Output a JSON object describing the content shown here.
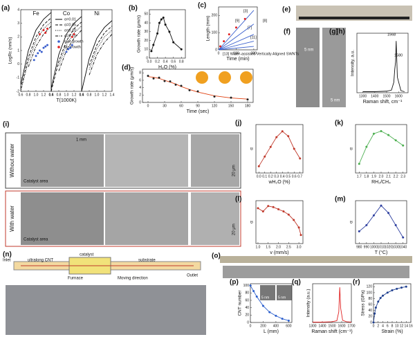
{
  "chart_data": [
    {
      "type": "line",
      "title": "Fe",
      "label": "(a)",
      "ylabel": "LogRc (nm/s)",
      "x": [
        0.6,
        0.8,
        1.0,
        1.2,
        1.4
      ],
      "xlim": [
        0.6,
        1.4
      ],
      "ylim": [
        -2,
        4
      ],
      "xticks": [
        0.6,
        0.8,
        {
          "value": 1,
          "label": "1.0"
        },
        1.2,
        1.4
      ],
      "yticks": [
        -2,
        -1,
        0,
        1,
        2,
        3,
        4
      ],
      "legend": "upper right",
      "series": [
        {
          "name": "α=0.01",
          "color": "#000",
          "style": "solid",
          "values": [
            -1.5,
            1.0,
            2.5,
            3.3,
            3.8
          ]
        },
        {
          "name": "α=0.05",
          "color": "#000",
          "style": "dashed",
          "values": [
            -1.8,
            0.5,
            2.0,
            2.9,
            3.4
          ]
        },
        {
          "name": "α=0.10",
          "color": "#000",
          "style": "dotted",
          "values": [
            -2,
            0.2,
            1.7,
            2.6,
            3.1
          ]
        },
        {
          "name": "α=0.20",
          "color": "#000",
          "style": "dashdot",
          "values": [
            null,
            -0.2,
            1.3,
            2.2,
            2.8
          ]
        },
        {
          "name": "root growth",
          "color": "#3a5fcd",
          "line": false,
          "marker": true,
          "x": [
            0.95,
            1.0,
            1.05,
            1.1,
            1.15,
            1.2,
            1.25,
            1.3
          ],
          "values": [
            0.3,
            0.6,
            0.8,
            1.0,
            0.9,
            1.2,
            1.3,
            1.4
          ]
        },
        {
          "name": "tip growth",
          "color": "#e02020",
          "line": false,
          "marker": true,
          "x": [
            1.1,
            1.2,
            1.25,
            1.3
          ],
          "values": [
            2.2,
            2.5,
            2.3,
            2.6
          ]
        }
      ]
    },
    {
      "type": "line",
      "title": "Co",
      "xlabel": "T(1000K)",
      "x": [
        0.6,
        0.8,
        1.0,
        1.2,
        1.4
      ],
      "xlim": [
        0.6,
        1.4
      ],
      "ylim": [
        -2,
        4
      ],
      "xticks": [
        0.6,
        0.8,
        {
          "value": 1,
          "label": "1.0"
        },
        1.2,
        1.4
      ],
      "series": [
        {
          "color": "#000",
          "style": "solid",
          "values": [
            -1.8,
            0.7,
            2.2,
            3.0,
            3.5
          ]
        },
        {
          "color": "#000",
          "style": "dashed",
          "values": [
            -2,
            0.2,
            1.7,
            2.6,
            3.1
          ]
        },
        {
          "color": "#000",
          "style": "dotted",
          "values": [
            null,
            -0.1,
            1.4,
            2.3,
            2.8
          ]
        },
        {
          "color": "#000",
          "style": "dashdot",
          "values": [
            null,
            -0.5,
            1.0,
            1.9,
            2.5
          ]
        },
        {
          "color": "#3a5fcd",
          "line": false,
          "marker": true,
          "x": [
            1.0,
            1.05,
            1.1,
            1.15
          ],
          "values": [
            0.9,
            1.1,
            1.2,
            1.4
          ]
        },
        {
          "color": "#e02020",
          "line": false,
          "marker": true,
          "x": [
            1.15,
            1.2
          ],
          "values": [
            2.0,
            2.2
          ]
        }
      ]
    },
    {
      "type": "line",
      "title": "Ni",
      "x": [
        0.6,
        0.8,
        1.0,
        1.2,
        1.4
      ],
      "xlim": [
        0.6,
        1.4
      ],
      "ylim": [
        -2,
        4
      ],
      "xticks": [
        0.6,
        0.8,
        {
          "value": 1,
          "label": "1.0"
        },
        1.2,
        1.4
      ],
      "series": [
        {
          "color": "#000",
          "style": "solid",
          "values": [
            -2,
            0.4,
            1.9,
            2.7,
            3.2
          ]
        },
        {
          "color": "#000",
          "style": "dashed",
          "values": [
            null,
            -0.1,
            1.4,
            2.3,
            2.8
          ]
        },
        {
          "color": "#000",
          "style": "dotted",
          "values": [
            null,
            -0.4,
            1.1,
            2.0,
            2.5
          ]
        },
        {
          "color": "#000",
          "style": "dashdot",
          "values": [
            null,
            -0.8,
            0.7,
            1.6,
            2.2
          ]
        }
      ]
    },
    {
      "type": "line",
      "label": "(b)",
      "xlabel": "H₂O (%)",
      "ylabel": "Growth rate (μm/s)",
      "x": [
        0.05,
        0.1,
        0.2,
        0.25,
        0.3,
        0.35,
        0.4,
        0.5,
        0.6,
        0.8
      ],
      "xlim": [
        0,
        0.9
      ],
      "ylim": [
        0,
        55
      ],
      "xticks": [
        {
          "value": 0,
          "label": "0.0"
        },
        0.2,
        0.4,
        0.6,
        0.8
      ],
      "yticks": [
        0,
        10,
        20,
        30,
        40,
        50
      ],
      "series": [
        {
          "color": "#111",
          "marker": true,
          "values": [
            8,
            15,
            28,
            40,
            44,
            46,
            38,
            30,
            18,
            10
          ]
        }
      ]
    },
    {
      "type": "line",
      "label": "(c)",
      "xlabel": "Time (min)",
      "ylabel": "Length (mm)",
      "x": [
        0,
        200
      ],
      "xlim": [
        0,
        220
      ],
      "ylim": [
        0,
        250
      ],
      "xticks": [
        0,
        100,
        200
      ],
      "yticks": [
        0,
        100,
        200
      ],
      "annotations": [
        "[3]",
        "[9]",
        "[7]",
        "[11]",
        "[8]",
        "[13] Water-assisted Vertically Aligned SWNTs"
      ],
      "series": [
        {
          "color": "#3a5fcd",
          "values": [
            0,
            230
          ]
        },
        {
          "color": "#3a5fcd",
          "values": [
            0,
            150
          ]
        },
        {
          "color": "#3a5fcd",
          "values": [
            0,
            90
          ]
        },
        {
          "color": "#3a5fcd",
          "values": [
            0,
            50
          ]
        },
        {
          "color": "#3a5fcd",
          "values": [
            0,
            20
          ]
        },
        {
          "color": "#e02020",
          "line": false,
          "marker": true,
          "x": [
            10,
            30,
            60,
            100,
            150
          ],
          "values": [
            20,
            50,
            90,
            130,
            180
          ]
        }
      ]
    },
    {
      "type": "line",
      "label": "(d)",
      "xlabel": "Time (sec)",
      "ylabel": "Growth rate (μm/s)",
      "x": [
        0,
        10,
        20,
        30,
        40,
        50,
        60,
        75,
        90,
        120,
        150,
        180
      ],
      "xlim": [
        -10,
        190
      ],
      "ylim": [
        0,
        9
      ],
      "xticks": [
        0,
        30,
        60,
        90,
        120,
        150,
        180
      ],
      "yticks": [
        0,
        2,
        4,
        6,
        8
      ],
      "series": [
        {
          "color": "#e04010",
          "values": [
            7,
            6.8,
            6.5,
            6,
            5.5,
            5,
            4.3,
            3.5,
            2.8,
            1.8,
            1.2,
            0.9
          ]
        },
        {
          "color": "#222",
          "line": false,
          "marker": true,
          "values": [
            7.2,
            6.5,
            6.7,
            5.8,
            5.7,
            4.8,
            4.5,
            3.3,
            3.0,
            1.6,
            1.3,
            0.8
          ]
        }
      ]
    },
    {
      "type": "line",
      "label": "(h)",
      "xlabel": "Raman shift, cm⁻¹",
      "ylabel": "Intensity, a.u.",
      "x": [
        1300,
        1400,
        1500,
        1540,
        1560,
        1568,
        1575,
        1580,
        1590,
        1620,
        1650
      ],
      "xlim": [
        1250,
        1680
      ],
      "ylim": [
        0,
        115
      ],
      "xticks": [
        1300,
        1400,
        1500,
        1600
      ],
      "annotations": [
        "1568",
        "1580"
      ],
      "series": [
        {
          "color": "#111",
          "values": [
            2,
            2,
            3,
            5,
            20,
            45,
            60,
            100,
            30,
            4,
            2
          ]
        }
      ]
    },
    {
      "type": "line",
      "label": "(j)",
      "xlabel": "wH₂O (%)",
      "ylabel": "α",
      "x": [
        0,
        0.1,
        0.2,
        0.3,
        0.4,
        0.5,
        0.6,
        0.7
      ],
      "xlim": [
        -0.05,
        0.75
      ],
      "ylim": [
        0.55,
        1.05
      ],
      "xticks": [
        {
          "value": 0,
          "label": "0.0"
        },
        0.1,
        0.2,
        0.3,
        0.4,
        0.5,
        0.6,
        0.7
      ],
      "series": [
        {
          "color": "#c0392b",
          "marker": true,
          "values": [
            0.62,
            0.72,
            0.82,
            0.92,
            0.98,
            0.93,
            0.8,
            0.7
          ]
        }
      ]
    },
    {
      "type": "line",
      "label": "(k)",
      "xlabel": "RH₂/CH₄",
      "ylabel": "α",
      "x": [
        1.7,
        1.8,
        1.9,
        2.0,
        2.1,
        2.2,
        2.3
      ],
      "xlim": [
        1.65,
        2.35
      ],
      "ylim": [
        0.65,
        1.02
      ],
      "xticks": [
        1.7,
        1.8,
        1.9,
        {
          "value": 2,
          "label": "2.0"
        },
        2.1,
        2.2,
        2.3
      ],
      "series": [
        {
          "color": "#4caf50",
          "marker": true,
          "values": [
            0.72,
            0.85,
            0.95,
            0.97,
            0.94,
            0.9,
            0.86
          ]
        }
      ]
    },
    {
      "type": "line",
      "label": "(l)",
      "xlabel": "v (mm/s)",
      "ylabel": "α",
      "x": [
        1.0,
        1.25,
        1.5,
        1.75,
        2.0,
        2.25,
        2.5,
        2.75,
        3.0,
        3.1
      ],
      "xlim": [
        0.9,
        3.2
      ],
      "ylim": [
        0.6,
        1.0
      ],
      "xticks": [
        {
          "value": 1,
          "label": "1.0"
        },
        1.5,
        {
          "value": 2,
          "label": "2.0"
        },
        2.5,
        {
          "value": 3,
          "label": "3.0"
        }
      ],
      "series": [
        {
          "color": "#c0392b",
          "marker": true,
          "values": [
            0.93,
            0.9,
            0.95,
            0.94,
            0.92,
            0.9,
            0.87,
            0.82,
            0.75,
            0.68
          ]
        }
      ]
    },
    {
      "type": "line",
      "label": "(m)",
      "xlabel": "T (°C)",
      "ylabel": "α",
      "x": [
        980,
        990,
        1000,
        1010,
        1020,
        1030,
        1040
      ],
      "xlim": [
        975,
        1045
      ],
      "ylim": [
        0.65,
        1.0
      ],
      "xticks": [
        980,
        990,
        1000,
        1010,
        1020,
        1030,
        1040
      ],
      "series": [
        {
          "color": "#2c3e9f",
          "marker": true,
          "values": [
            0.75,
            0.8,
            0.88,
            0.96,
            0.9,
            0.8,
            0.7
          ]
        }
      ]
    },
    {
      "type": "line",
      "label": "(p)",
      "xlabel": "L (mm)",
      "ylabel": "CNT number",
      "x": [
        0,
        50,
        100,
        200,
        300,
        400,
        500,
        600
      ],
      "xlim": [
        0,
        650
      ],
      "ylim": [
        0,
        105
      ],
      "xticks": [
        0,
        200,
        400,
        600
      ],
      "yticks": [
        0,
        20,
        40,
        60,
        80,
        100
      ],
      "series": [
        {
          "color": "#2c5fcd",
          "marker": true,
          "values": [
            100,
            85,
            70,
            45,
            28,
            18,
            10,
            5
          ]
        }
      ]
    },
    {
      "type": "line",
      "label": "(q)",
      "xlabel": "Raman shift (cm⁻¹)",
      "ylabel": "Intensity (a.u.)",
      "x": [
        1300,
        1400,
        1500,
        1550,
        1570,
        1580,
        1590,
        1610,
        1650,
        1700
      ],
      "xlim": [
        1300,
        1700
      ],
      "ylim": [
        0,
        110
      ],
      "xticks": [
        1300,
        1400,
        1500,
        1600,
        1700
      ],
      "series": [
        {
          "color": "#e02020",
          "values": [
            1,
            1,
            2,
            5,
            30,
            100,
            40,
            6,
            2,
            1
          ]
        }
      ]
    },
    {
      "type": "line",
      "label": "(r)",
      "xlabel": "Strain (%)",
      "ylabel": "Stress (GPa)",
      "x": [
        0,
        0.5,
        1,
        2,
        3,
        4,
        6,
        8,
        10,
        12,
        14
      ],
      "xlim": [
        0,
        16
      ],
      "ylim": [
        0,
        130
      ],
      "xticks": [
        0,
        2,
        4,
        6,
        8,
        10,
        12,
        14,
        16
      ],
      "yticks": [
        0,
        20,
        40,
        60,
        80,
        100,
        120
      ],
      "series": [
        {
          "color": "#1f3f8f",
          "marker": true,
          "values": [
            0,
            30,
            50,
            70,
            82,
            90,
            100,
            108,
            113,
            117,
            120
          ]
        }
      ]
    }
  ],
  "figure": {
    "labels": [
      "(e)",
      "(f)",
      "(g)",
      "(i)",
      "(n)",
      "(o)"
    ],
    "texts": [
      "5 nm",
      "5 nm",
      "1 mm",
      "Without water",
      "With water",
      "Catalyst area",
      "Catalyst area",
      "20 μm",
      "20 μm",
      "Inlet",
      "ultralong CNT",
      "catalyst",
      "substrate",
      "Outlet",
      "Furnace",
      "Moving direction",
      "5 nm",
      "5 nm"
    ]
  }
}
